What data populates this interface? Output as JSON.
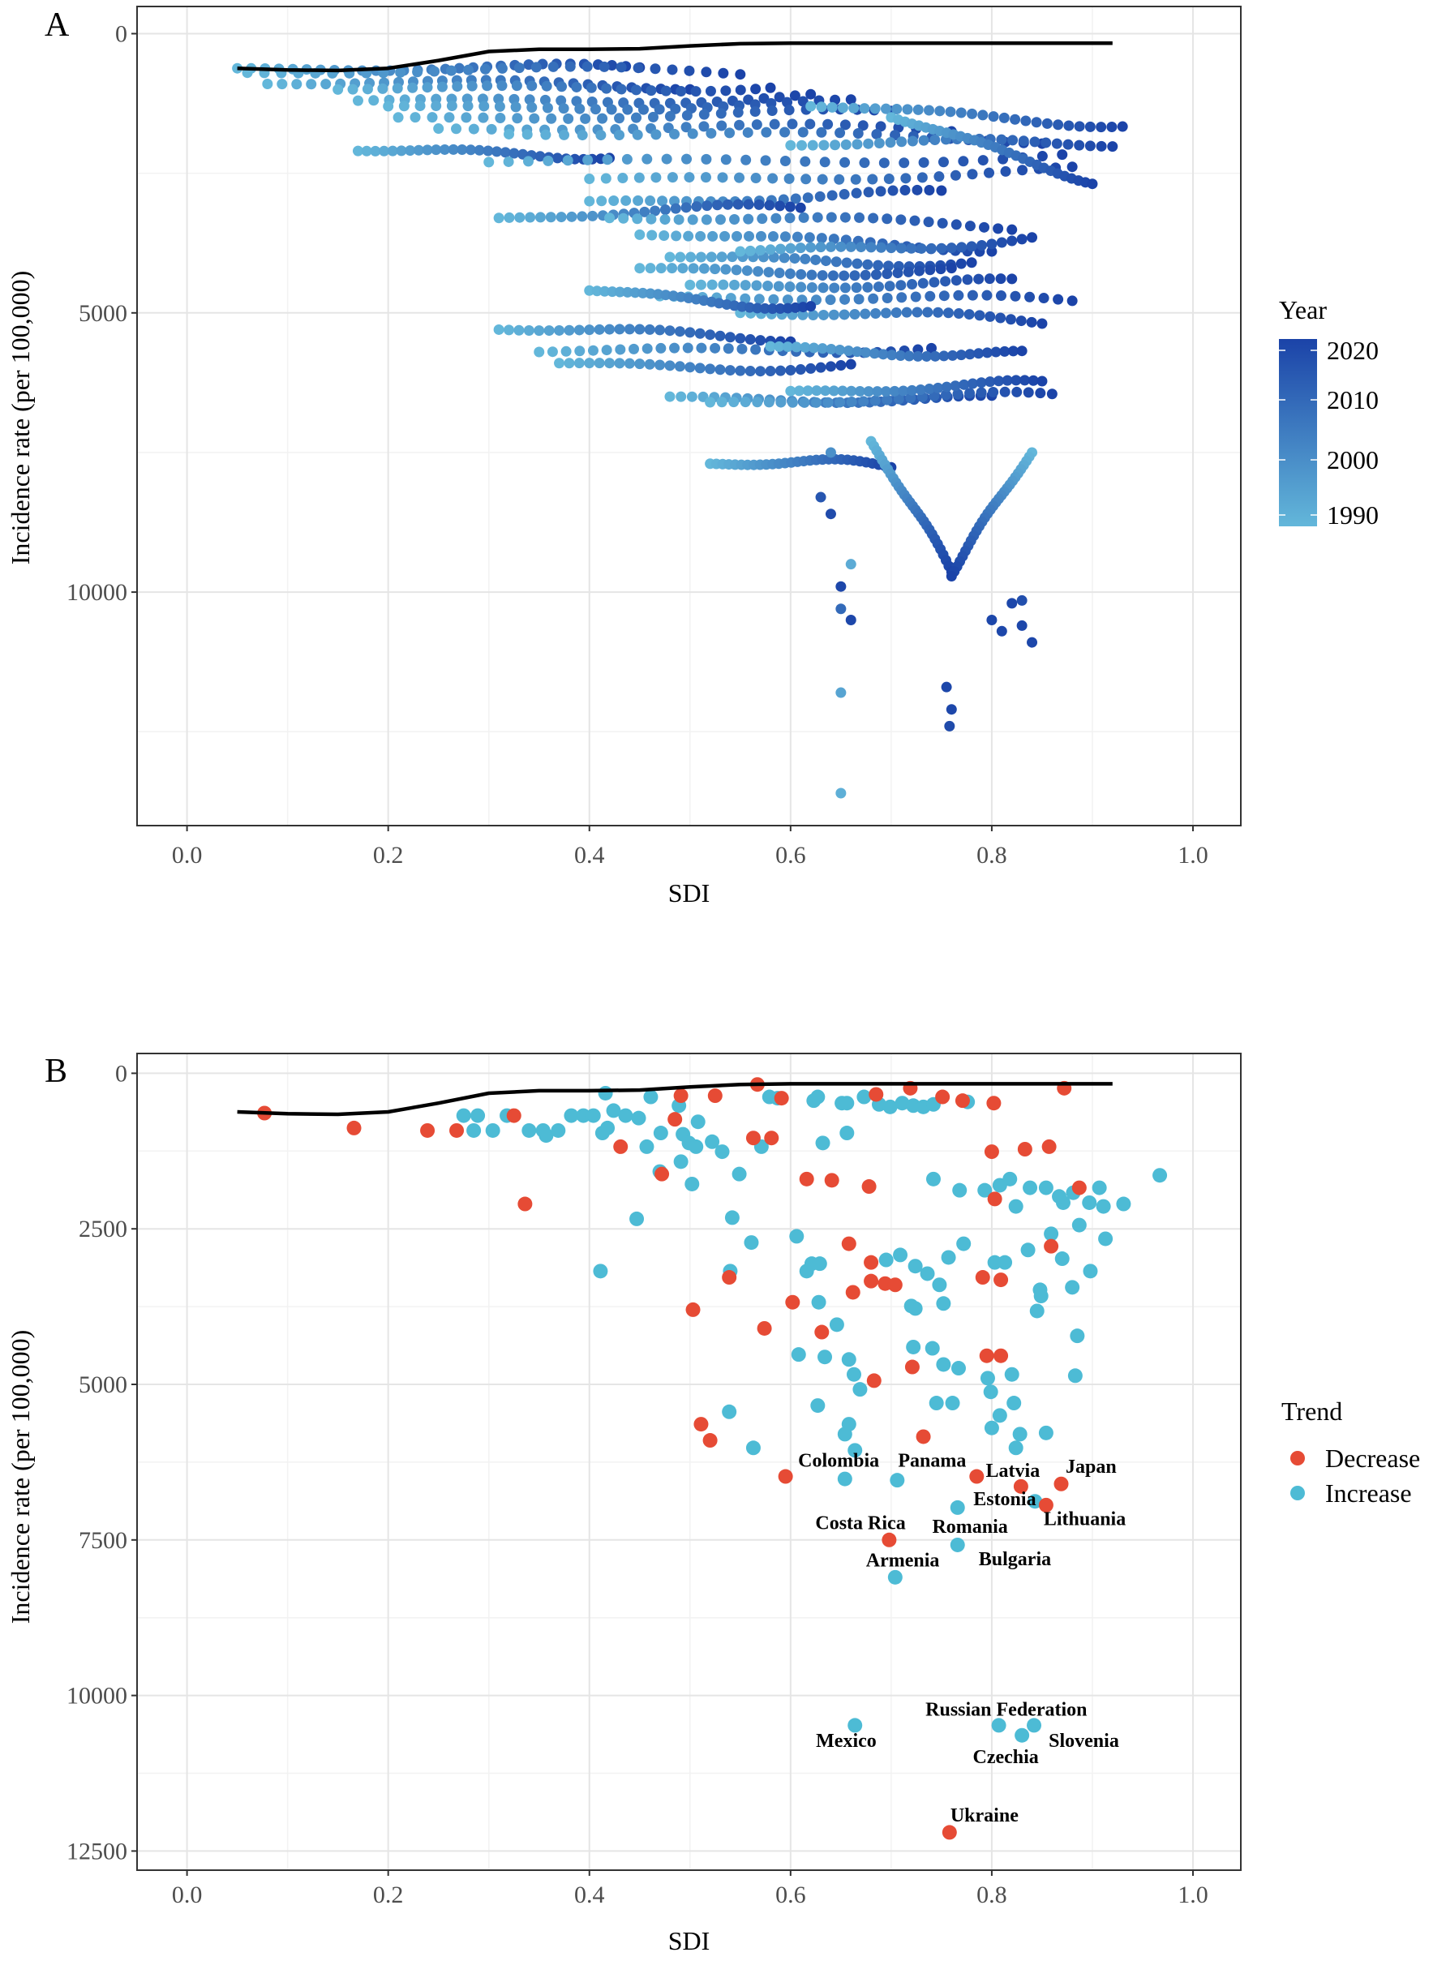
{
  "chart_data": [
    {
      "panel": "A",
      "type": "scatter",
      "xlabel": "SDI",
      "ylabel": "Incidence rate (per 100,000)",
      "xlim": [
        -0.05,
        1.05
      ],
      "ylim": [
        14100,
        -500
      ],
      "y_reversed": true,
      "xticks": [
        "0.0",
        "0.2",
        "0.4",
        "0.6",
        "0.8",
        "1.0"
      ],
      "xtick_values": [
        0,
        0.2,
        0.4,
        0.6,
        0.8,
        1.0
      ],
      "yticks": [
        "0",
        "5000",
        "10000"
      ],
      "ytick_values": [
        0,
        5000,
        10000
      ],
      "grid": true,
      "legend": {
        "title": "Year",
        "type": "colorbar",
        "labels": [
          "2020",
          "2010",
          "2000",
          "1990"
        ],
        "values": [
          2020,
          2010,
          2000,
          1990
        ],
        "position": "right"
      },
      "colors": {
        "low": "#63b7da",
        "high": "#1b43a8",
        "trend_line": "#000000"
      },
      "trajectories_note_fields": [
        "sdi_1990",
        "rate_1990",
        "sdi_2019",
        "rate_2019"
      ],
      "trajectories": [
        [
          0.05,
          620,
          0.45,
          640
        ],
        [
          0.06,
          700,
          0.55,
          650
        ],
        [
          0.08,
          900,
          0.5,
          880
        ],
        [
          0.15,
          1000,
          0.58,
          920
        ],
        [
          0.17,
          1200,
          0.62,
          1150
        ],
        [
          0.2,
          1300,
          0.66,
          1300
        ],
        [
          0.21,
          1500,
          0.7,
          1450
        ],
        [
          0.25,
          1700,
          0.76,
          1700
        ],
        [
          0.32,
          1800,
          0.85,
          1850
        ],
        [
          0.17,
          2100,
          0.42,
          2150
        ],
        [
          0.3,
          2300,
          0.87,
          2200
        ],
        [
          0.4,
          2600,
          0.88,
          2500
        ],
        [
          0.4,
          3000,
          0.75,
          2900
        ],
        [
          0.31,
          3300,
          0.61,
          3100
        ],
        [
          0.42,
          3300,
          0.82,
          3400
        ],
        [
          0.45,
          3600,
          0.8,
          3800
        ],
        [
          0.48,
          4000,
          0.78,
          4100
        ],
        [
          0.45,
          4200,
          0.76,
          4300
        ],
        [
          0.5,
          4500,
          0.82,
          4500
        ],
        [
          0.47,
          4700,
          0.88,
          4800
        ],
        [
          0.55,
          5000,
          0.85,
          5100
        ],
        [
          0.31,
          5300,
          0.6,
          5400
        ],
        [
          0.35,
          5700,
          0.74,
          5600
        ],
        [
          0.37,
          5900,
          0.66,
          6000
        ],
        [
          0.48,
          6500,
          0.8,
          6600
        ],
        [
          0.52,
          6600,
          0.86,
          6500
        ],
        [
          0.52,
          7700,
          0.7,
          7700
        ],
        [
          0.6,
          2000,
          0.92,
          1900
        ],
        [
          0.62,
          1300,
          0.93,
          1600
        ],
        [
          0.55,
          3900,
          0.84,
          3700
        ],
        [
          0.58,
          5600,
          0.83,
          5800
        ],
        [
          0.6,
          6400,
          0.85,
          6300
        ],
        [
          0.68,
          7300,
          0.76,
          9600
        ],
        [
          0.84,
          7500,
          0.76,
          9600
        ],
        [
          0.7,
          1500,
          0.9,
          2600
        ],
        [
          0.4,
          4600,
          0.62,
          4900
        ]
      ],
      "extra_points": [
        [
          0.64,
          8600,
          2018
        ],
        [
          0.65,
          9900,
          2019
        ],
        [
          0.66,
          10500,
          2019
        ],
        [
          0.65,
          10300,
          2010
        ],
        [
          0.65,
          11800,
          1995
        ],
        [
          0.65,
          13600,
          1992
        ],
        [
          0.755,
          11700,
          2019
        ],
        [
          0.76,
          12100,
          2019
        ],
        [
          0.758,
          12400,
          2018
        ],
        [
          0.8,
          10500,
          2019
        ],
        [
          0.81,
          10700,
          2019
        ],
        [
          0.82,
          10200,
          2019
        ],
        [
          0.83,
          10600,
          2019
        ],
        [
          0.84,
          10900,
          2019
        ],
        [
          0.83,
          10150,
          2017
        ],
        [
          0.66,
          9500,
          1993
        ],
        [
          0.63,
          8300,
          2015
        ],
        [
          0.64,
          7500,
          2000
        ]
      ],
      "trend_curve": [
        [
          0.05,
          620
        ],
        [
          0.1,
          650
        ],
        [
          0.15,
          660
        ],
        [
          0.2,
          620
        ],
        [
          0.25,
          480
        ],
        [
          0.3,
          320
        ],
        [
          0.35,
          280
        ],
        [
          0.4,
          280
        ],
        [
          0.45,
          270
        ],
        [
          0.5,
          220
        ],
        [
          0.55,
          180
        ],
        [
          0.6,
          170
        ],
        [
          0.7,
          170
        ],
        [
          0.8,
          170
        ],
        [
          0.92,
          170
        ]
      ]
    },
    {
      "panel": "B",
      "type": "scatter",
      "xlabel": "SDI",
      "ylabel": "Incidence rate (per 100,000)",
      "xlim": [
        -0.05,
        1.05
      ],
      "ylim": [
        12800,
        -320
      ],
      "y_reversed": true,
      "xticks": [
        "0.0",
        "0.2",
        "0.4",
        "0.6",
        "0.8",
        "1.0"
      ],
      "xtick_values": [
        0,
        0.2,
        0.4,
        0.6,
        0.8,
        1.0
      ],
      "yticks": [
        "0",
        "2500",
        "5000",
        "7500",
        "10000",
        "12500"
      ],
      "ytick_values": [
        0,
        2500,
        5000,
        7500,
        10000,
        12500
      ],
      "grid": true,
      "legend": {
        "title": "Trend",
        "entries": [
          "Decrease",
          "Increase"
        ],
        "position": "right"
      },
      "colors": {
        "Decrease": "#e64b35",
        "Increase": "#4dbbd5",
        "trend_line": "#000000"
      },
      "decrease": [
        [
          0.077,
          640
        ],
        [
          0.166,
          880
        ],
        [
          0.239,
          920
        ],
        [
          0.268,
          920
        ],
        [
          0.325,
          680
        ],
        [
          0.336,
          2100
        ],
        [
          0.431,
          1180
        ],
        [
          0.472,
          1620
        ],
        [
          0.485,
          740
        ],
        [
          0.491,
          360
        ],
        [
          0.525,
          360
        ],
        [
          0.563,
          1040
        ],
        [
          0.567,
          180
        ],
        [
          0.581,
          1040
        ],
        [
          0.591,
          400
        ],
        [
          0.503,
          3800
        ],
        [
          0.539,
          3280
        ],
        [
          0.574,
          4100
        ],
        [
          0.602,
          3680
        ],
        [
          0.631,
          4160
        ],
        [
          0.616,
          1700
        ],
        [
          0.641,
          1720
        ],
        [
          0.678,
          1820
        ],
        [
          0.658,
          2740
        ],
        [
          0.662,
          3520
        ],
        [
          0.68,
          3040
        ],
        [
          0.68,
          3340
        ],
        [
          0.694,
          3380
        ],
        [
          0.704,
          3400
        ],
        [
          0.683,
          4940
        ],
        [
          0.721,
          4720
        ],
        [
          0.685,
          340
        ],
        [
          0.719,
          240
        ],
        [
          0.751,
          380
        ],
        [
          0.771,
          440
        ],
        [
          0.802,
          480
        ],
        [
          0.8,
          1260
        ],
        [
          0.803,
          2020
        ],
        [
          0.833,
          1220
        ],
        [
          0.857,
          1180
        ],
        [
          0.791,
          3280
        ],
        [
          0.809,
          3320
        ],
        [
          0.795,
          4540
        ],
        [
          0.809,
          4540
        ],
        [
          0.859,
          2780
        ],
        [
          0.887,
          1840
        ],
        [
          0.872,
          240
        ],
        [
          0.511,
          5640
        ],
        [
          0.52,
          5900
        ],
        [
          0.595,
          6480
        ],
        [
          0.732,
          5840
        ]
      ],
      "increase": [
        [
          0.275,
          680
        ],
        [
          0.285,
          920
        ],
        [
          0.289,
          680
        ],
        [
          0.304,
          920
        ],
        [
          0.318,
          680
        ],
        [
          0.34,
          920
        ],
        [
          0.354,
          920
        ],
        [
          0.357,
          1000
        ],
        [
          0.369,
          920
        ],
        [
          0.382,
          680
        ],
        [
          0.394,
          680
        ],
        [
          0.404,
          680
        ],
        [
          0.413,
          960
        ],
        [
          0.418,
          880
        ],
        [
          0.424,
          600
        ],
        [
          0.436,
          680
        ],
        [
          0.449,
          720
        ],
        [
          0.461,
          380
        ],
        [
          0.471,
          960
        ],
        [
          0.489,
          520
        ],
        [
          0.493,
          980
        ],
        [
          0.499,
          1120
        ],
        [
          0.506,
          1180
        ],
        [
          0.508,
          780
        ],
        [
          0.522,
          1100
        ],
        [
          0.532,
          1260
        ],
        [
          0.416,
          320
        ],
        [
          0.457,
          1180
        ],
        [
          0.47,
          1580
        ],
        [
          0.491,
          1420
        ],
        [
          0.502,
          1780
        ],
        [
          0.542,
          2320
        ],
        [
          0.549,
          1620
        ],
        [
          0.571,
          1180
        ],
        [
          0.579,
          380
        ],
        [
          0.587,
          400
        ],
        [
          0.623,
          440
        ],
        [
          0.627,
          380
        ],
        [
          0.651,
          480
        ],
        [
          0.656,
          480
        ],
        [
          0.673,
          380
        ],
        [
          0.688,
          500
        ],
        [
          0.699,
          540
        ],
        [
          0.711,
          480
        ],
        [
          0.722,
          520
        ],
        [
          0.732,
          540
        ],
        [
          0.742,
          500
        ],
        [
          0.776,
          460
        ],
        [
          0.656,
          960
        ],
        [
          0.632,
          1120
        ],
        [
          0.447,
          2340
        ],
        [
          0.411,
          3180
        ],
        [
          0.54,
          3180
        ],
        [
          0.561,
          2720
        ],
        [
          0.606,
          2620
        ],
        [
          0.616,
          3180
        ],
        [
          0.621,
          3060
        ],
        [
          0.629,
          3060
        ],
        [
          0.628,
          3680
        ],
        [
          0.646,
          4040
        ],
        [
          0.634,
          4560
        ],
        [
          0.608,
          4520
        ],
        [
          0.658,
          4600
        ],
        [
          0.663,
          4840
        ],
        [
          0.669,
          5080
        ],
        [
          0.627,
          5340
        ],
        [
          0.654,
          5800
        ],
        [
          0.539,
          5440
        ],
        [
          0.563,
          6020
        ],
        [
          0.695,
          3000
        ],
        [
          0.709,
          2920
        ],
        [
          0.724,
          3100
        ],
        [
          0.724,
          3780
        ],
        [
          0.736,
          3220
        ],
        [
          0.748,
          3400
        ],
        [
          0.752,
          3700
        ],
        [
          0.757,
          2960
        ],
        [
          0.741,
          4420
        ],
        [
          0.752,
          4680
        ],
        [
          0.767,
          4740
        ],
        [
          0.761,
          5300
        ],
        [
          0.722,
          4400
        ],
        [
          0.72,
          3740
        ],
        [
          0.745,
          5300
        ],
        [
          0.742,
          1700
        ],
        [
          0.768,
          1880
        ],
        [
          0.793,
          1880
        ],
        [
          0.808,
          1800
        ],
        [
          0.818,
          1700
        ],
        [
          0.824,
          2140
        ],
        [
          0.838,
          1840
        ],
        [
          0.854,
          1840
        ],
        [
          0.871,
          2080
        ],
        [
          0.867,
          1980
        ],
        [
          0.881,
          1920
        ],
        [
          0.907,
          1840
        ],
        [
          0.897,
          2080
        ],
        [
          0.911,
          2140
        ],
        [
          0.931,
          2100
        ],
        [
          0.967,
          1640
        ],
        [
          0.913,
          2660
        ],
        [
          0.887,
          2440
        ],
        [
          0.859,
          2580
        ],
        [
          0.836,
          2840
        ],
        [
          0.803,
          3040
        ],
        [
          0.813,
          3040
        ],
        [
          0.772,
          2740
        ],
        [
          0.87,
          2980
        ],
        [
          0.848,
          3480
        ],
        [
          0.845,
          3820
        ],
        [
          0.88,
          3440
        ],
        [
          0.898,
          3180
        ],
        [
          0.885,
          4220
        ],
        [
          0.883,
          4860
        ],
        [
          0.849,
          3580
        ],
        [
          0.796,
          4900
        ],
        [
          0.799,
          5120
        ],
        [
          0.808,
          5500
        ],
        [
          0.822,
          5300
        ],
        [
          0.8,
          5700
        ],
        [
          0.828,
          5800
        ],
        [
          0.82,
          4840
        ],
        [
          0.824,
          6020
        ],
        [
          0.854,
          5780
        ],
        [
          0.658,
          5640
        ],
        [
          0.664,
          6060
        ],
        [
          0.843,
          6880
        ]
      ],
      "labeled": [
        {
          "name": "Colombia",
          "sdi": 0.654,
          "rate": 6520,
          "trend": "Increase"
        },
        {
          "name": "Panama",
          "sdi": 0.706,
          "rate": 6540,
          "trend": "Increase"
        },
        {
          "name": "Latvia",
          "sdi": 0.785,
          "rate": 6480,
          "trend": "Decrease"
        },
        {
          "name": "Japan",
          "sdi": 0.869,
          "rate": 6600,
          "trend": "Decrease"
        },
        {
          "name": "Estonia",
          "sdi": 0.829,
          "rate": 6640,
          "trend": "Decrease"
        },
        {
          "name": "Lithuania",
          "sdi": 0.854,
          "rate": 6940,
          "trend": "Decrease"
        },
        {
          "name": "Costa Rica",
          "sdi": 0.698,
          "rate": 7500,
          "trend": "Decrease"
        },
        {
          "name": "Romania",
          "sdi": 0.766,
          "rate": 6980,
          "trend": "Increase"
        },
        {
          "name": "Bulgaria",
          "sdi": 0.766,
          "rate": 7580,
          "trend": "Increase"
        },
        {
          "name": "Armenia",
          "sdi": 0.704,
          "rate": 8100,
          "trend": "Increase"
        },
        {
          "name": "Mexico",
          "sdi": 0.664,
          "rate": 10480,
          "trend": "Increase"
        },
        {
          "name": "Russian Federation",
          "sdi": 0.807,
          "rate": 10480,
          "trend": "Increase"
        },
        {
          "name": "Czechia",
          "sdi": 0.83,
          "rate": 10640,
          "trend": "Increase"
        },
        {
          "name": "Slovenia",
          "sdi": 0.842,
          "rate": 10480,
          "trend": "Increase"
        },
        {
          "name": "Ukraine",
          "sdi": 0.758,
          "rate": 12200,
          "trend": "Decrease"
        }
      ],
      "trend_curve": [
        [
          0.05,
          620
        ],
        [
          0.1,
          650
        ],
        [
          0.15,
          660
        ],
        [
          0.2,
          620
        ],
        [
          0.25,
          480
        ],
        [
          0.3,
          320
        ],
        [
          0.35,
          280
        ],
        [
          0.4,
          280
        ],
        [
          0.45,
          270
        ],
        [
          0.5,
          220
        ],
        [
          0.55,
          180
        ],
        [
          0.6,
          170
        ],
        [
          0.7,
          170
        ],
        [
          0.8,
          170
        ],
        [
          0.92,
          170
        ]
      ]
    }
  ]
}
